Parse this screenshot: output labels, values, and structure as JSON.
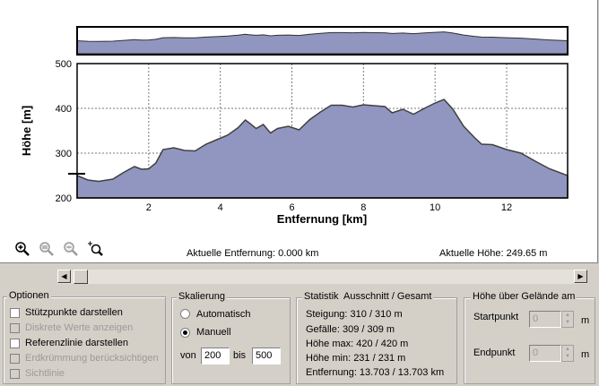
{
  "chart_data": {
    "type": "area",
    "xlabel": "Entfernung [km]",
    "ylabel": "Höhe [m]",
    "xlim": [
      0,
      13.703
    ],
    "ylim": [
      200,
      500
    ],
    "x_ticks": [
      2,
      4,
      6,
      8,
      10,
      12
    ],
    "y_ticks": [
      200,
      300,
      400,
      500
    ],
    "grid": true,
    "fill_color": "#9196c0",
    "line_color": "#404040",
    "series": [
      {
        "x": [
          0,
          0.3,
          0.6,
          1.0,
          1.3,
          1.6,
          1.8,
          2.0,
          2.2,
          2.4,
          2.7,
          3.0,
          3.3,
          3.6,
          3.9,
          4.2,
          4.5,
          4.7,
          4.8,
          5.0,
          5.2,
          5.4,
          5.6,
          5.9,
          6.2,
          6.5,
          6.8,
          7.1,
          7.4,
          7.7,
          8.0,
          8.3,
          8.6,
          8.8,
          9.1,
          9.4,
          9.7,
          10.0,
          10.25,
          10.5,
          10.8,
          11.1,
          11.3,
          11.6,
          12.0,
          12.4,
          12.8,
          13.2,
          13.703
        ],
        "y": [
          250,
          240,
          237,
          242,
          257,
          270,
          264,
          265,
          278,
          308,
          312,
          306,
          305,
          320,
          330,
          340,
          357,
          374,
          368,
          355,
          364,
          345,
          355,
          360,
          352,
          375,
          392,
          407,
          407,
          403,
          408,
          406,
          404,
          390,
          398,
          387,
          400,
          412,
          420,
          398,
          360,
          335,
          320,
          319,
          308,
          300,
          282,
          265,
          250
        ]
      }
    ]
  },
  "overview_chart": {
    "type": "area",
    "fill_color": "#9196c0"
  },
  "tools": {
    "zoom_in_icon": "zoom-in-icon",
    "zoom_out_icon": "zoom-out-icon",
    "zoom_reset_icon": "zoom-reset-icon",
    "zoom_select_icon": "zoom-select-icon"
  },
  "status": {
    "distance": "Aktuelle Entfernung: 0.000 km",
    "height": "Aktuelle Höhe: 249.65 m"
  },
  "optionen": {
    "title": "Optionen",
    "items": [
      {
        "label": "Stützpunkte darstellen",
        "enabled": true,
        "checked": false
      },
      {
        "label": "Diskrete Werte anzeigen",
        "enabled": false,
        "checked": false
      },
      {
        "label": "Referenzlinie darstellen",
        "enabled": true,
        "checked": false
      },
      {
        "label": "Erdkrümmung berücksichtigen",
        "enabled": false,
        "checked": false
      },
      {
        "label": "Sichtlinie",
        "enabled": false,
        "checked": false
      }
    ]
  },
  "skalierung": {
    "title": "Skalierung",
    "automatic_label": "Automatisch",
    "manual_label": "Manuell",
    "selected": "Manuell",
    "from_label": "von",
    "from_value": "200",
    "to_label": "bis",
    "to_value": "500"
  },
  "statistik": {
    "title": "Statistik  Ausschnitt / Gesamt",
    "rows": [
      "Steigung: 310 / 310 m",
      "Gefälle: 309 / 309 m",
      "Höhe max: 420 / 420 m",
      "Höhe min: 231 / 231 m",
      "Entfernung: 13.703 / 13.703 km"
    ]
  },
  "gelaende": {
    "title": "Höhe über Gelände am",
    "start_label": "Startpunkt",
    "start_value": "0",
    "start_unit": "m",
    "end_label": "Endpunkt",
    "end_value": "0",
    "end_unit": "m"
  }
}
